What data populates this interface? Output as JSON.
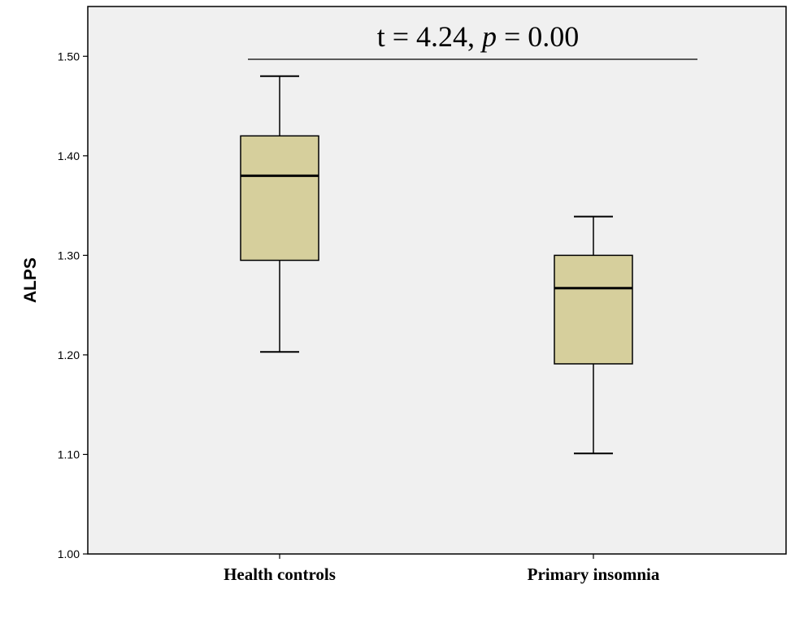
{
  "chart_data": {
    "type": "box",
    "ylabel": "ALPS",
    "xlabel": "",
    "ylim": [
      1.0,
      1.55
    ],
    "y_ticks": [
      "1.00",
      "1.10",
      "1.20",
      "1.30",
      "1.40",
      "1.50"
    ],
    "y_tick_values": [
      1.0,
      1.1,
      1.2,
      1.3,
      1.4,
      1.5
    ],
    "grid": false,
    "categories": [
      "Health controls",
      "Primary insomnia"
    ],
    "boxes": [
      {
        "category": "Health controls",
        "whisker_low": 1.203,
        "q1": 1.295,
        "median": 1.38,
        "q3": 1.42,
        "whisker_high": 1.48
      },
      {
        "category": "Primary insomnia",
        "whisker_low": 1.101,
        "q1": 1.191,
        "median": 1.267,
        "q3": 1.3,
        "whisker_high": 1.339
      }
    ],
    "annotation": {
      "prefix": "t = 4.24, ",
      "italic": "p",
      "suffix": " = 0.00"
    },
    "colors": {
      "plot_background": "#f0f0f0",
      "box_fill": "#d6cf9c",
      "stroke": "#000000"
    }
  }
}
